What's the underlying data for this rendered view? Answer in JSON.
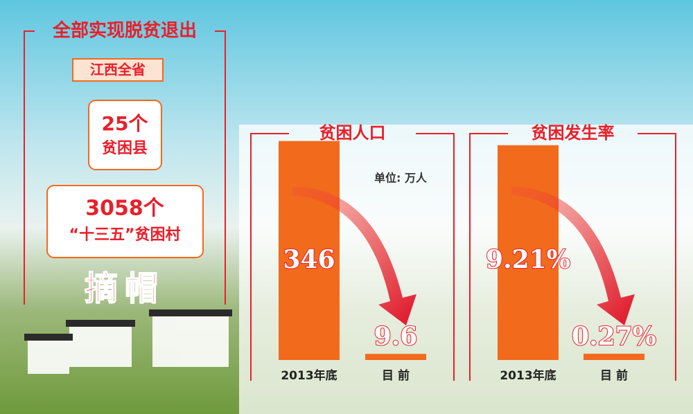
{
  "panel": {
    "title": "全部实现脱贫退出",
    "region": "江西全省",
    "counties": {
      "count": "25个",
      "label": "贫困县"
    },
    "villages": {
      "count": "3058个",
      "label": "“十三五”贫困村"
    },
    "status": "摘帽"
  },
  "chart_data": [
    {
      "type": "bar",
      "title": "贫困人口",
      "unit_note": "单位: 万人",
      "categories": [
        "2013年底",
        "目 前"
      ],
      "values": [
        346,
        9.6
      ],
      "color": "#f26a1c",
      "ylim": [
        0,
        350
      ]
    },
    {
      "type": "bar",
      "title": "贫困发生率",
      "categories": [
        "2013年底",
        "目 前"
      ],
      "values": [
        9.21,
        0.27
      ],
      "value_labels": [
        "9.21%",
        "0.27%"
      ],
      "color": "#f26a1c",
      "ylim": [
        0,
        9.5
      ]
    }
  ]
}
